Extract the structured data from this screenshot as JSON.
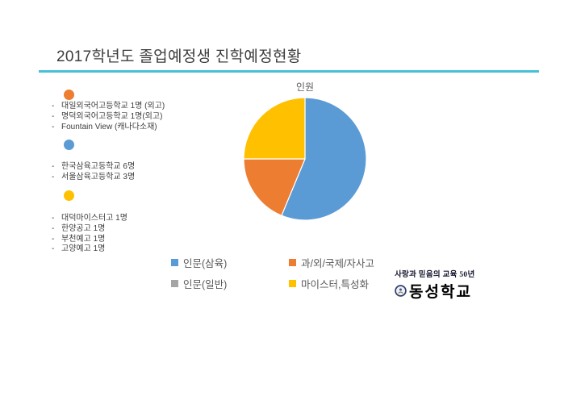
{
  "slide": {
    "title": "2017학년도 졸업예정생 진학예정현황",
    "accent_line_color": "#47C0D6",
    "background_color": "#FFFFFF"
  },
  "groups": [
    {
      "name": "foreign-language-international-schools",
      "bullet_color": "#ED7D31",
      "items": [
        "대일외국어고등학교 1명 (외고)",
        "명덕외국어고등학교 1명(외고)",
        "Fountain View (캐나다소재)"
      ]
    },
    {
      "name": "sahmyook-schools",
      "bullet_color": "#5B9BD5",
      "items": [
        "한국삼육고등학교 6명",
        "서울삼육고등학교 3명"
      ]
    },
    {
      "name": "meister-specialized-schools",
      "bullet_color": "#FFC000",
      "items": [
        "대덕마이스터고 1명",
        "한양공고 1명",
        "부천예고 1명",
        "고양예고 1명"
      ]
    }
  ],
  "chart_data": {
    "type": "pie",
    "title": "인원",
    "categories": [
      "인문(삼육)",
      "과/외/국제/자사고",
      "인문(일반)",
      "마이스터,특성화"
    ],
    "values": [
      9,
      3,
      0,
      4
    ],
    "colors": [
      "#5B9BD5",
      "#ED7D31",
      "#A5A5A5",
      "#FFC000"
    ],
    "legend_position": "bottom",
    "start_angle_deg": 0,
    "direction": "clockwise",
    "slice_border_color": "#FFFFFF"
  },
  "footer_logo": {
    "slogan": "사랑과 믿음의 교육 50년",
    "school_name": "동성학교",
    "emblem_icon": "circular-school-seal",
    "emblem_ring_color": "#2C3E6B"
  }
}
